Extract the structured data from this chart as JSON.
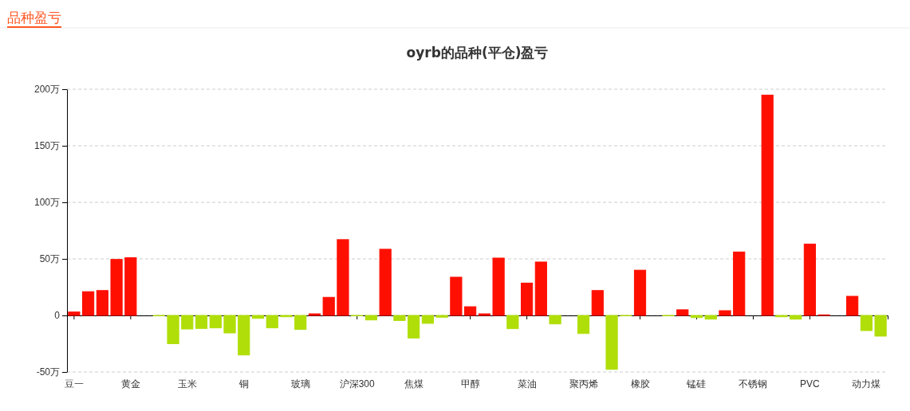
{
  "chart_data": {
    "type": "bar",
    "title": "oyrb的品种(平仓)盈亏",
    "annotations": [
      "品种盈亏"
    ],
    "categories": [
      "豆一",
      null,
      null,
      null,
      "黄金",
      null,
      null,
      null,
      "玉米",
      null,
      null,
      null,
      "铜",
      null,
      null,
      null,
      "玻璃",
      null,
      null,
      null,
      "沪深300",
      null,
      null,
      null,
      "焦煤",
      null,
      null,
      null,
      "甲醇",
      null,
      null,
      null,
      "菜油",
      null,
      null,
      null,
      "聚丙烯",
      null,
      null,
      null,
      "橡胶",
      null,
      null,
      null,
      "锰硅",
      null,
      null,
      null,
      "不锈钢",
      null,
      null,
      null,
      "PVC",
      null,
      null,
      null,
      "动力煤",
      null
    ],
    "values": [
      3,
      21,
      22,
      49.5,
      51,
      0,
      -0.3,
      -25,
      -12,
      -11.5,
      -11,
      -15.5,
      -35,
      -2.6,
      -11,
      -1.2,
      -12.4,
      1.4,
      16,
      67,
      -0.3,
      -4,
      58.5,
      -4.5,
      -20,
      -7,
      -1.6,
      33.8,
      7.7,
      1.4,
      50.7,
      -11.7,
      28.6,
      47.2,
      -7.5,
      0,
      -16,
      22,
      -47.7,
      -0.3,
      40,
      0,
      -0.3,
      5,
      -1.9,
      -3.3,
      4.2,
      56.1,
      0,
      194.8,
      -1.2,
      -3.3,
      63.1,
      0.5,
      0,
      16.9,
      -13.4,
      -18.3
    ],
    "colors": [
      "#ff0f00",
      "#ff0f00",
      "#ff0f00",
      "#ff0f00",
      "#ff0f00",
      "#ff0f00",
      "#b0de09",
      "#b0de09",
      "#b0de09",
      "#b0de09",
      "#b0de09",
      "#b0de09",
      "#b0de09",
      "#b0de09",
      "#b0de09",
      "#b0de09",
      "#b0de09",
      "#ff0f00",
      "#ff0f00",
      "#ff0f00",
      "#b0de09",
      "#b0de09",
      "#ff0f00",
      "#b0de09",
      "#b0de09",
      "#b0de09",
      "#b0de09",
      "#ff0f00",
      "#ff0f00",
      "#ff0f00",
      "#ff0f00",
      "#b0de09",
      "#ff0f00",
      "#ff0f00",
      "#b0de09",
      "#ff0f00",
      "#b0de09",
      "#ff0f00",
      "#b0de09",
      "#b0de09",
      "#ff0f00",
      "#ff0f00",
      "#b0de09",
      "#ff0f00",
      "#b0de09",
      "#b0de09",
      "#ff0f00",
      "#ff0f00",
      "#ff0f00",
      "#ff0f00",
      "#b0de09",
      "#b0de09",
      "#ff0f00",
      "#ff0f00",
      "#ff0f00",
      "#ff0f00",
      "#b0de09",
      "#b0de09"
    ],
    "ylim": [
      -50,
      200
    ],
    "yticks": [
      {
        "value": -50,
        "label": "-50万"
      },
      {
        "value": 0,
        "label": "0"
      },
      {
        "value": 50,
        "label": "50万"
      },
      {
        "value": 100,
        "label": "100万"
      },
      {
        "value": 150,
        "label": "150万"
      },
      {
        "value": 200,
        "label": "200万"
      }
    ],
    "grid": "y"
  }
}
